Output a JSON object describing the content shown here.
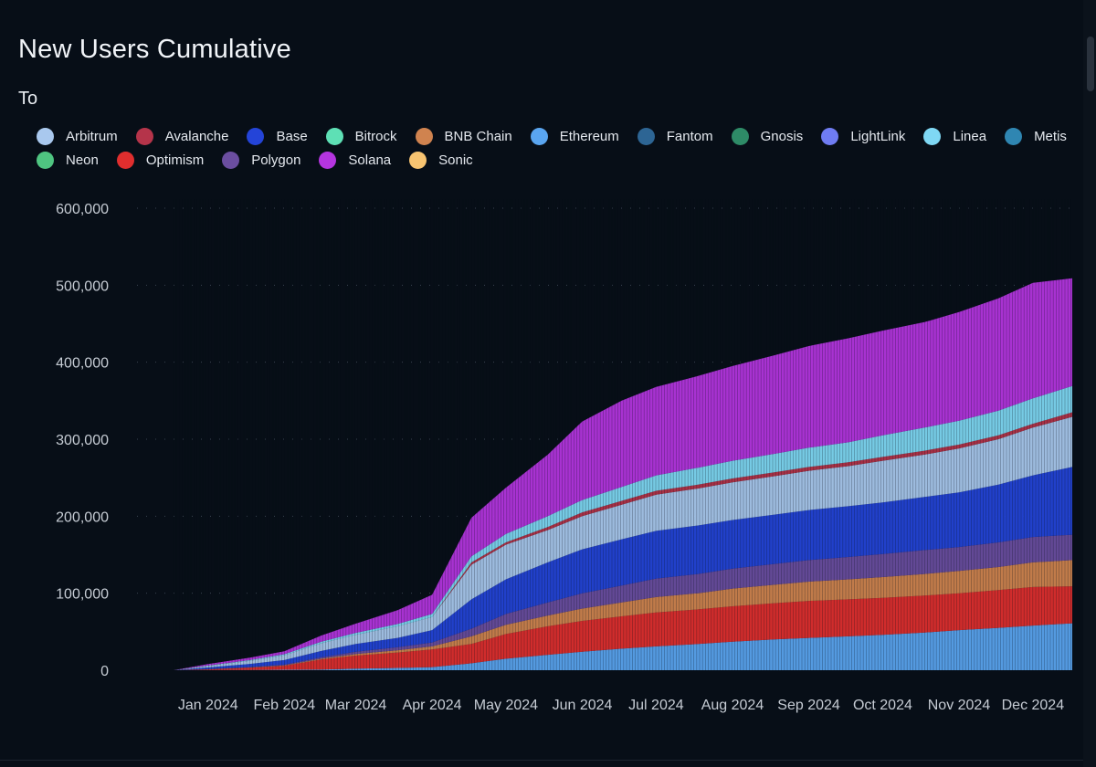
{
  "chart_data": {
    "type": "area",
    "stacked": true,
    "title": "New Users Cumulative",
    "legend_title": "To",
    "legend_position": "top-left",
    "grid": "horizontal-dotted",
    "xlabel": "",
    "ylabel": "",
    "ylim": [
      0,
      600000
    ],
    "yticks": [
      0,
      100000,
      200000,
      300000,
      400000,
      500000,
      600000
    ],
    "ytick_labels": [
      "0",
      "100,000",
      "200,000",
      "300,000",
      "400,000",
      "500,000",
      "600,000"
    ],
    "xticks": [
      "2024-01-15",
      "2024-02-15",
      "2024-03-15",
      "2024-04-15",
      "2024-05-15",
      "2024-06-15",
      "2024-07-15",
      "2024-08-15",
      "2024-09-15",
      "2024-10-15",
      "2024-11-15",
      "2024-12-15"
    ],
    "xtick_labels": [
      "Jan 2024",
      "Feb 2024",
      "Mar 2024",
      "Apr 2024",
      "May 2024",
      "Jun 2024",
      "Jul 2024",
      "Aug 2024",
      "Sep 2024",
      "Oct 2024",
      "Nov 2024",
      "Dec 2024"
    ],
    "xlim": [
      "2024-01-01",
      "2024-12-31"
    ],
    "x": [
      "2024-01-01",
      "2024-01-15",
      "2024-02-01",
      "2024-02-15",
      "2024-03-01",
      "2024-03-15",
      "2024-04-01",
      "2024-04-15",
      "2024-05-01",
      "2024-05-15",
      "2024-06-01",
      "2024-06-15",
      "2024-07-01",
      "2024-07-15",
      "2024-08-01",
      "2024-08-15",
      "2024-09-01",
      "2024-09-15",
      "2024-10-01",
      "2024-10-15",
      "2024-11-01",
      "2024-11-15",
      "2024-12-01",
      "2024-12-15",
      "2024-12-31"
    ],
    "series": [
      {
        "name": "Arbitrum",
        "color": "#a9c8ee",
        "values": [
          0,
          2000,
          4000,
          6000,
          10000,
          12000,
          15000,
          17000,
          45000,
          45000,
          42000,
          43000,
          45000,
          47000,
          48000,
          49000,
          50000,
          51000,
          52000,
          54000,
          55000,
          57000,
          59000,
          62000,
          65000
        ]
      },
      {
        "name": "Avalanche",
        "color": "#b5344a",
        "values": [
          0,
          0,
          0,
          0,
          0,
          0,
          0,
          0,
          3000,
          3000,
          4000,
          5000,
          5000,
          5000,
          5000,
          5000,
          5000,
          5000,
          5000,
          5000,
          5000,
          5000,
          5000,
          5000,
          6000
        ]
      },
      {
        "name": "Base",
        "color": "#2444d8",
        "values": [
          0,
          2000,
          4000,
          6000,
          8000,
          10000,
          12000,
          16000,
          38000,
          45000,
          52000,
          57000,
          60000,
          62000,
          63000,
          63000,
          64000,
          65000,
          66000,
          67000,
          69000,
          71000,
          75000,
          80000,
          88000
        ]
      },
      {
        "name": "Bitrock",
        "color": "#5ee0b5",
        "values": [
          0,
          0,
          0,
          0,
          0,
          0,
          0,
          0,
          0,
          0,
          0,
          0,
          0,
          0,
          0,
          0,
          0,
          0,
          0,
          0,
          0,
          0,
          0,
          0,
          0
        ]
      },
      {
        "name": "BNB Chain",
        "color": "#d0834f",
        "values": [
          0,
          100,
          300,
          600,
          1000,
          2000,
          3000,
          4000,
          10000,
          12000,
          14000,
          16000,
          18000,
          20000,
          21000,
          23000,
          24000,
          25000,
          26000,
          27000,
          28000,
          29000,
          30000,
          32000,
          34000
        ]
      },
      {
        "name": "Ethereum",
        "color": "#5aa5f0",
        "values": [
          0,
          100,
          300,
          600,
          1000,
          2000,
          3000,
          4000,
          9000,
          15000,
          20000,
          24000,
          28000,
          31000,
          34000,
          37000,
          40000,
          42000,
          44000,
          46000,
          49000,
          52000,
          55000,
          58000,
          61000
        ]
      },
      {
        "name": "Fantom",
        "color": "#2d6594",
        "values": [
          0,
          0,
          0,
          0,
          0,
          0,
          0,
          0,
          0,
          0,
          0,
          0,
          0,
          0,
          0,
          0,
          0,
          0,
          0,
          0,
          0,
          0,
          0,
          0,
          0
        ]
      },
      {
        "name": "Gnosis",
        "color": "#2e8b67",
        "values": [
          0,
          0,
          0,
          0,
          0,
          0,
          0,
          0,
          0,
          0,
          0,
          0,
          0,
          0,
          0,
          0,
          0,
          0,
          0,
          0,
          0,
          0,
          0,
          0,
          0
        ]
      },
      {
        "name": "LightLink",
        "color": "#6f7cf2",
        "values": [
          0,
          0,
          0,
          0,
          0,
          0,
          0,
          0,
          0,
          0,
          0,
          0,
          0,
          0,
          0,
          0,
          0,
          0,
          0,
          0,
          0,
          0,
          0,
          0,
          0
        ]
      },
      {
        "name": "Linea",
        "color": "#7fd8f4",
        "values": [
          0,
          500,
          1000,
          1500,
          2000,
          2500,
          3000,
          4000,
          8000,
          11000,
          14000,
          16000,
          18000,
          20000,
          22000,
          23000,
          24000,
          25000,
          26000,
          28000,
          30000,
          31000,
          32000,
          33000,
          34000
        ]
      },
      {
        "name": "Metis",
        "color": "#2f86b2",
        "values": [
          0,
          0,
          0,
          0,
          0,
          0,
          0,
          0,
          0,
          0,
          0,
          0,
          0,
          0,
          0,
          0,
          0,
          0,
          0,
          0,
          0,
          0,
          0,
          0,
          0
        ]
      },
      {
        "name": "Neon",
        "color": "#4fc581",
        "values": [
          0,
          0,
          0,
          0,
          0,
          0,
          0,
          0,
          0,
          0,
          0,
          0,
          0,
          0,
          0,
          0,
          0,
          0,
          0,
          0,
          0,
          0,
          0,
          0,
          0
        ]
      },
      {
        "name": "Optimism",
        "color": "#e02e2e",
        "values": [
          0,
          1000,
          3000,
          5000,
          13000,
          17000,
          20000,
          23000,
          25000,
          32000,
          37000,
          40000,
          42000,
          44000,
          45000,
          46000,
          47000,
          48000,
          48000,
          48000,
          48000,
          48000,
          49000,
          50000,
          48000
        ]
      },
      {
        "name": "Polygon",
        "color": "#6b4ea0",
        "values": [
          0,
          300,
          600,
          1000,
          2000,
          3000,
          4000,
          5000,
          10000,
          14000,
          17000,
          20000,
          22000,
          24000,
          25000,
          26000,
          27000,
          28000,
          29000,
          30000,
          31000,
          31000,
          32000,
          33000,
          33000
        ]
      },
      {
        "name": "Solana",
        "color": "#b535e0",
        "values": [
          0,
          2000,
          3000,
          4000,
          8000,
          12000,
          18000,
          25000,
          50000,
          60000,
          80000,
          102000,
          112000,
          115000,
          119000,
          123000,
          128000,
          132000,
          135000,
          136000,
          137000,
          141000,
          146000,
          150000,
          140000
        ]
      },
      {
        "name": "Sonic",
        "color": "#f8c471",
        "values": [
          0,
          0,
          0,
          0,
          0,
          0,
          0,
          0,
          0,
          0,
          0,
          0,
          0,
          0,
          0,
          0,
          0,
          0,
          0,
          0,
          0,
          0,
          0,
          0,
          0
        ]
      }
    ]
  },
  "stack_order": [
    "Ethereum",
    "Optimism",
    "BNB Chain",
    "Polygon",
    "Base",
    "Arbitrum",
    "Avalanche",
    "Linea",
    "Solana",
    "Metis",
    "Fantom",
    "Gnosis",
    "LightLink",
    "Neon",
    "Sonic",
    "Bitrock"
  ],
  "legend_rows": [
    [
      "Arbitrum",
      "Avalanche",
      "Base",
      "Bitrock",
      "BNB Chain",
      "Ethereum",
      "Fantom",
      "Gnosis",
      "LightLink",
      "Linea",
      "Metis"
    ],
    [
      "Neon",
      "Optimism",
      "Polygon",
      "Solana",
      "Sonic"
    ]
  ],
  "colors": {
    "background": "#070e17",
    "grid": "#3a4350",
    "tick_text": "#c6ccd4"
  }
}
